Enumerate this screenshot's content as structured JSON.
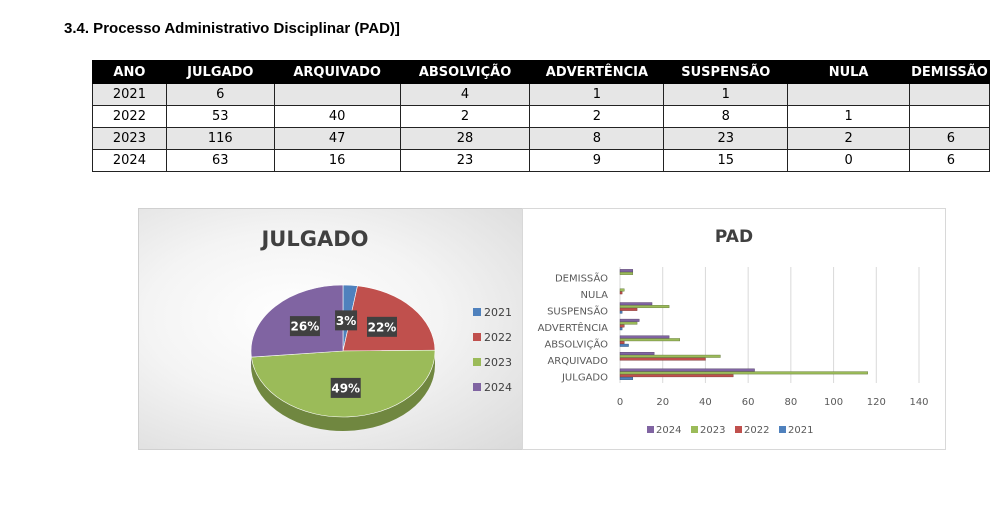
{
  "section_title": "3.4. Processo Administrativo Disciplinar (PAD)]",
  "table": {
    "headers": [
      "ANO",
      "JULGADO",
      "ARQUIVADO",
      "ABSOLVIÇÃO",
      "ADVERTÊNCIA",
      "SUSPENSÃO",
      "NULA",
      "DEMISSÃO"
    ],
    "rows": [
      [
        "2021",
        "6",
        "",
        "4",
        "1",
        "1",
        "",
        ""
      ],
      [
        "2022",
        "53",
        "40",
        "2",
        "2",
        "8",
        "1",
        ""
      ],
      [
        "2023",
        "116",
        "47",
        "28",
        "8",
        "23",
        "2",
        "6"
      ],
      [
        "2024",
        "63",
        "16",
        "23",
        "9",
        "15",
        "0",
        "6"
      ]
    ]
  },
  "chart_data": [
    {
      "type": "pie",
      "title": "JULGADO",
      "labels": [
        "2021",
        "2022",
        "2023",
        "2024"
      ],
      "values": [
        6,
        53,
        116,
        63
      ],
      "data_labels": [
        "3%",
        "22%",
        "49%",
        "26%"
      ],
      "colors": [
        "#4f81bd",
        "#c0504d",
        "#9bbb59",
        "#8064a2"
      ],
      "legend": "right"
    },
    {
      "type": "bar",
      "orientation": "horizontal",
      "title": "PAD",
      "categories": [
        "JULGADO",
        "ARQUIVADO",
        "ABSOLVIÇÃO",
        "ADVERTÊNCIA",
        "SUSPENSÃO",
        "NULA",
        "DEMISSÃO"
      ],
      "series": [
        {
          "name": "2021",
          "color": "#4f81bd",
          "values": [
            6,
            0,
            4,
            1,
            1,
            0,
            0
          ]
        },
        {
          "name": "2022",
          "color": "#c0504d",
          "values": [
            53,
            40,
            2,
            2,
            8,
            1,
            0
          ]
        },
        {
          "name": "2023",
          "color": "#9bbb59",
          "values": [
            116,
            47,
            28,
            8,
            23,
            2,
            6
          ]
        },
        {
          "name": "2024",
          "color": "#8064a2",
          "values": [
            63,
            16,
            23,
            9,
            15,
            0,
            6
          ]
        }
      ],
      "legend_order": [
        "2024",
        "2023",
        "2022",
        "2021"
      ],
      "xlim": [
        0,
        140
      ],
      "xticks": [
        0,
        20,
        40,
        60,
        80,
        100,
        120,
        140
      ],
      "grid": true,
      "legend": "bottom"
    }
  ]
}
